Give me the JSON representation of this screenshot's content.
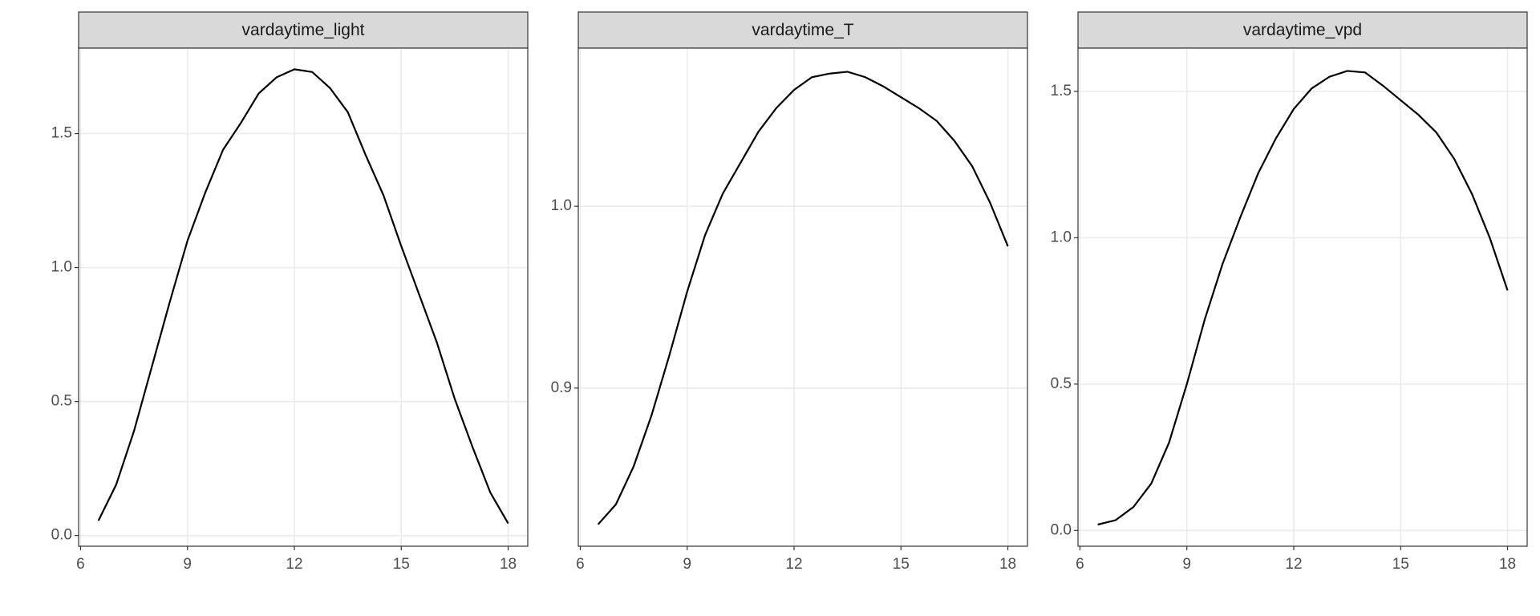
{
  "chart_data": [
    {
      "type": "line",
      "title": "vardaytime_light",
      "x": [
        6.5,
        7,
        7.5,
        8,
        8.5,
        9,
        9.5,
        10,
        10.5,
        11,
        11.5,
        12,
        12.5,
        13,
        13.5,
        14,
        14.5,
        15,
        15.5,
        16,
        16.5,
        17,
        17.5,
        18
      ],
      "values": [
        0.055,
        0.19,
        0.39,
        0.63,
        0.87,
        1.1,
        1.28,
        1.44,
        1.54,
        1.65,
        1.71,
        1.74,
        1.73,
        1.67,
        1.58,
        1.42,
        1.27,
        1.08,
        0.9,
        0.72,
        0.51,
        0.33,
        0.16,
        0.045
      ],
      "color": "#000000",
      "xlim": [
        5.945,
        18.55
      ],
      "ylim": [
        -0.04,
        1.819
      ],
      "xticks": [
        6,
        9,
        12,
        15,
        18
      ],
      "yticks": [
        {
          "value": 0,
          "label": "0.0"
        },
        0.5,
        {
          "value": 1,
          "label": "1.0"
        },
        1.5
      ],
      "grid": true
    },
    {
      "type": "line",
      "title": "vardaytime_T",
      "x": [
        6.5,
        7,
        7.5,
        8,
        8.5,
        9,
        9.5,
        10,
        10.5,
        11,
        11.5,
        12,
        12.5,
        13,
        13.5,
        14,
        14.5,
        15,
        15.5,
        16,
        16.5,
        17,
        17.5,
        18
      ],
      "values": [
        0.825,
        0.836,
        0.857,
        0.885,
        0.918,
        0.953,
        0.984,
        1.007,
        1.024,
        1.041,
        1.054,
        1.064,
        1.071,
        1.073,
        1.074,
        1.071,
        1.066,
        1.06,
        1.054,
        1.047,
        1.036,
        1.022,
        1.002,
        0.978
      ],
      "color": "#000000",
      "xlim": [
        5.945,
        18.55
      ],
      "ylim": [
        0.813,
        1.087
      ],
      "xticks": [
        6,
        9,
        12,
        15,
        18
      ],
      "yticks": [
        0.9,
        {
          "value": 1,
          "label": "1.0"
        }
      ],
      "grid": true
    },
    {
      "type": "line",
      "title": "vardaytime_vpd",
      "x": [
        6.5,
        7,
        7.5,
        8,
        8.5,
        9,
        9.5,
        10,
        10.5,
        11,
        11.5,
        12,
        12.5,
        13,
        13.5,
        14,
        14.5,
        15,
        15.5,
        16,
        16.5,
        17,
        17.5,
        18
      ],
      "values": [
        0.02,
        0.035,
        0.08,
        0.16,
        0.3,
        0.5,
        0.72,
        0.91,
        1.07,
        1.22,
        1.34,
        1.44,
        1.51,
        1.55,
        1.57,
        1.565,
        1.52,
        1.47,
        1.42,
        1.36,
        1.27,
        1.15,
        1.0,
        0.82
      ],
      "color": "#000000",
      "xlim": [
        5.945,
        18.55
      ],
      "ylim": [
        -0.054,
        1.648
      ],
      "xticks": [
        6,
        9,
        12,
        15,
        18
      ],
      "yticks": [
        {
          "value": 0,
          "label": "0.0"
        },
        0.5,
        {
          "value": 1,
          "label": "1.0"
        },
        1.5
      ],
      "grid": true
    }
  ]
}
